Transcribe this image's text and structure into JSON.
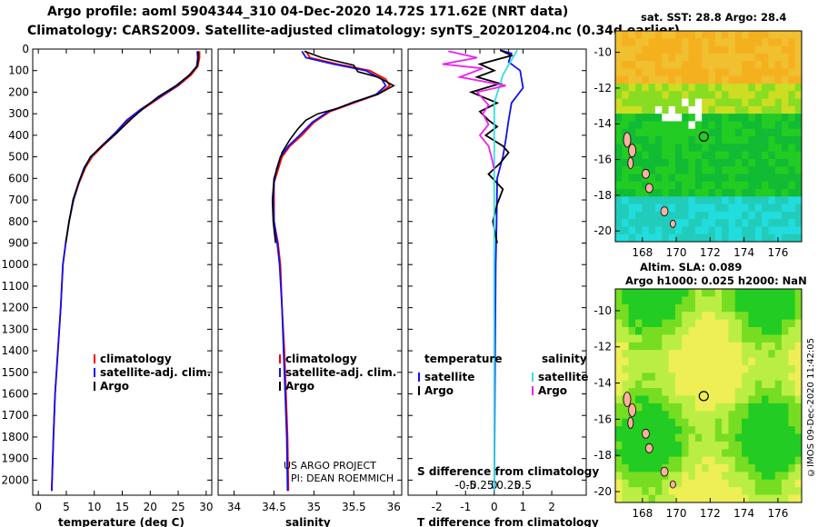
{
  "header": {
    "title_line1": "Argo profile: aoml 5904344_310 04-Dec-2020 14.72S 171.62E (NRT data)",
    "title_line2": "Climatology: CARS2009. Satellite-adjusted climatology: synTS_20201204.nc (0.34d earlier)"
  },
  "colors": {
    "climatology": "#ff0000",
    "satellite_adj": "#1010ee",
    "argo": "#000000",
    "satellite_s": "#33e0e0",
    "argo_s": "#ee22ee",
    "sst_warm": "#f5b020",
    "sst_mid": "#22cc22",
    "sst_cool": "#22dddd",
    "land": "#ffb0a0"
  },
  "depth_axis": {
    "ticks": [
      0,
      100,
      200,
      300,
      400,
      500,
      600,
      700,
      800,
      900,
      1000,
      1100,
      1200,
      1300,
      1400,
      1500,
      1600,
      1700,
      1800,
      1900,
      2000
    ],
    "ylim": [
      2070,
      0
    ]
  },
  "chart_data": [
    {
      "type": "line",
      "panel": "temperature",
      "xlabel": "temperature (deg C)",
      "xlim": [
        -1,
        31
      ],
      "xticks": [
        0,
        5,
        10,
        15,
        20,
        25,
        30
      ],
      "legend": [
        "climatology",
        "satellite-adj. clim.",
        "Argo"
      ],
      "series": [
        {
          "name": "climatology",
          "points": [
            [
              28.8,
              10
            ],
            [
              28.8,
              40
            ],
            [
              28.5,
              80
            ],
            [
              27.3,
              120
            ],
            [
              25,
              170
            ],
            [
              22,
              220
            ],
            [
              18.6,
              280
            ],
            [
              16,
              330
            ],
            [
              14,
              390
            ],
            [
              11.5,
              450
            ],
            [
              9.6,
              500
            ],
            [
              8.4,
              550
            ],
            [
              7.3,
              620
            ],
            [
              6.3,
              700
            ],
            [
              5.5,
              800
            ],
            [
              4.9,
              900
            ],
            [
              4.4,
              1000
            ],
            [
              4.0,
              1200
            ],
            [
              3.5,
              1400
            ],
            [
              3.0,
              1600
            ],
            [
              2.7,
              1800
            ],
            [
              2.4,
              2050
            ]
          ]
        },
        {
          "name": "satellite-adj. clim.",
          "points": [
            [
              28.4,
              10
            ],
            [
              28.5,
              40
            ],
            [
              28.3,
              80
            ],
            [
              27,
              120
            ],
            [
              24.8,
              170
            ],
            [
              21.8,
              220
            ],
            [
              18.3,
              280
            ],
            [
              15.8,
              330
            ],
            [
              13.7,
              390
            ],
            [
              11.3,
              450
            ],
            [
              9.4,
              500
            ],
            [
              8.2,
              550
            ],
            [
              7.2,
              620
            ],
            [
              6.3,
              700
            ],
            [
              5.5,
              800
            ],
            [
              4.9,
              900
            ],
            [
              4.4,
              1000
            ],
            [
              4.0,
              1200
            ],
            [
              3.5,
              1400
            ],
            [
              3.0,
              1600
            ],
            [
              2.7,
              1800
            ],
            [
              2.4,
              2050
            ]
          ]
        },
        {
          "name": "Argo",
          "points": [
            [
              28.6,
              10
            ],
            [
              28.6,
              40
            ],
            [
              28.4,
              80
            ],
            [
              27,
              120
            ],
            [
              24.6,
              170
            ],
            [
              21.5,
              220
            ],
            [
              18.8,
              275
            ],
            [
              16.8,
              320
            ],
            [
              14,
              390
            ],
            [
              11.4,
              450
            ],
            [
              9.3,
              500
            ],
            [
              8.3,
              550
            ],
            [
              7.2,
              620
            ],
            [
              6.2,
              700
            ],
            [
              5.5,
              800
            ],
            [
              4.9,
              900
            ]
          ]
        }
      ]
    },
    {
      "type": "line",
      "panel": "salinity",
      "xlabel": "salinity",
      "xlim": [
        33.8,
        36.1
      ],
      "xticks": [
        34,
        34.5,
        35,
        35.5,
        36
      ],
      "legend": [
        "climatology",
        "satellite-adj. clim.",
        "Argo"
      ],
      "annotations": [
        "US ARGO PROJECT",
        "PI: DEAN ROEMMICH"
      ],
      "series": [
        {
          "name": "climatology",
          "points": [
            [
              34.9,
              10
            ],
            [
              34.95,
              40
            ],
            [
              35.3,
              70
            ],
            [
              35.7,
              100
            ],
            [
              35.9,
              140
            ],
            [
              35.95,
              170
            ],
            [
              35.8,
              210
            ],
            [
              35.5,
              250
            ],
            [
              35.2,
              290
            ],
            [
              35.0,
              340
            ],
            [
              34.85,
              400
            ],
            [
              34.7,
              450
            ],
            [
              34.6,
              500
            ],
            [
              34.55,
              560
            ],
            [
              34.5,
              620
            ],
            [
              34.5,
              700
            ],
            [
              34.5,
              800
            ],
            [
              34.55,
              900
            ],
            [
              34.58,
              1000
            ],
            [
              34.6,
              1200
            ],
            [
              34.63,
              1400
            ],
            [
              34.65,
              1600
            ],
            [
              34.67,
              1800
            ],
            [
              34.68,
              2050
            ]
          ]
        },
        {
          "name": "satellite-adj. clim.",
          "points": [
            [
              34.85,
              10
            ],
            [
              34.9,
              40
            ],
            [
              35.25,
              70
            ],
            [
              35.65,
              100
            ],
            [
              35.85,
              140
            ],
            [
              35.9,
              170
            ],
            [
              35.78,
              210
            ],
            [
              35.48,
              250
            ],
            [
              35.18,
              290
            ],
            [
              34.98,
              340
            ],
            [
              34.82,
              400
            ],
            [
              34.68,
              450
            ],
            [
              34.58,
              500
            ],
            [
              34.53,
              560
            ],
            [
              34.5,
              620
            ],
            [
              34.49,
              700
            ],
            [
              34.5,
              800
            ],
            [
              34.54,
              900
            ],
            [
              34.57,
              1000
            ],
            [
              34.6,
              1200
            ],
            [
              34.62,
              1400
            ],
            [
              34.64,
              1600
            ],
            [
              34.66,
              1800
            ],
            [
              34.67,
              2050
            ]
          ]
        },
        {
          "name": "Argo",
          "points": [
            [
              34.88,
              10
            ],
            [
              35.1,
              40
            ],
            [
              35.5,
              75
            ],
            [
              35.55,
              105
            ],
            [
              35.8,
              130
            ],
            [
              36.0,
              170
            ],
            [
              35.8,
              210
            ],
            [
              35.5,
              245
            ],
            [
              35.3,
              275
            ],
            [
              35.05,
              300
            ],
            [
              34.9,
              330
            ],
            [
              34.8,
              370
            ],
            [
              34.7,
              420
            ],
            [
              34.6,
              480
            ],
            [
              34.55,
              540
            ],
            [
              34.5,
              600
            ],
            [
              34.48,
              700
            ],
            [
              34.49,
              800
            ],
            [
              34.52,
              900
            ]
          ]
        }
      ]
    },
    {
      "type": "line",
      "panel": "difference",
      "xlabel": "T difference from climatology",
      "xlabel2": "S difference from climatology",
      "xlim": [
        -3,
        3.2
      ],
      "xticks_T": [
        -2,
        -1,
        0,
        1,
        2
      ],
      "xticks_S": [
        "-0.5",
        "-0.25",
        "0",
        "0.25",
        "0.5"
      ],
      "legend_T_title": "temperature",
      "legend_S_title": "salinity",
      "legend_T": [
        "satellite",
        "Argo"
      ],
      "legend_S": [
        "satellite",
        "Argo"
      ],
      "series": [
        {
          "name": "T satellite",
          "points": [
            [
              0.2,
              5
            ],
            [
              0.6,
              20
            ],
            [
              0.5,
              60
            ],
            [
              0.9,
              100
            ],
            [
              1.0,
              180
            ],
            [
              0.6,
              250
            ],
            [
              0.5,
              330
            ],
            [
              0.4,
              420
            ],
            [
              0.3,
              500
            ],
            [
              0.1,
              600
            ],
            [
              0.08,
              800
            ],
            [
              0.05,
              1000
            ],
            [
              0.0,
              2050
            ]
          ]
        },
        {
          "name": "T Argo",
          "points": [
            [
              0.2,
              5
            ],
            [
              0.6,
              30
            ],
            [
              -0.5,
              70
            ],
            [
              0,
              100
            ],
            [
              -0.6,
              130
            ],
            [
              0.2,
              160
            ],
            [
              -0.8,
              200
            ],
            [
              0.1,
              250
            ],
            [
              -0.5,
              290
            ],
            [
              -0.2,
              330
            ],
            [
              0.1,
              360
            ],
            [
              -0.3,
              400
            ],
            [
              0.3,
              450
            ],
            [
              0.5,
              480
            ],
            [
              0.2,
              530
            ],
            [
              -0.2,
              580
            ],
            [
              0.3,
              650
            ],
            [
              0.1,
              720
            ],
            [
              -0.05,
              800
            ],
            [
              0.1,
              900
            ]
          ]
        },
        {
          "name": "S satellite",
          "points": [
            [
              0.4,
              5
            ],
            [
              0.3,
              50
            ],
            [
              0.15,
              120
            ],
            [
              0.0,
              250
            ],
            [
              0.0,
              350
            ],
            [
              0.0,
              400
            ],
            [
              0.0,
              2050
            ]
          ]
        },
        {
          "name": "S Argo",
          "points": [
            [
              -0.8,
              10
            ],
            [
              -0.3,
              40
            ],
            [
              -0.9,
              70
            ],
            [
              -0.2,
              90
            ],
            [
              -0.6,
              130
            ],
            [
              0.2,
              170
            ],
            [
              -0.3,
              200
            ],
            [
              -0.1,
              260
            ],
            [
              -0.2,
              300
            ],
            [
              -0.1,
              350
            ],
            [
              -0.25,
              400
            ],
            [
              -0.1,
              450
            ],
            [
              -0.05,
              500
            ],
            [
              0.0,
              560
            ]
          ]
        }
      ]
    }
  ],
  "maps": {
    "sst": {
      "title": "sat. SST: 28.8 Argo: 28.4",
      "lon_ticks": [
        "168",
        "170",
        "172",
        "174",
        "176"
      ],
      "lat_ticks": [
        "-10",
        "-12",
        "-14",
        "-16",
        "-18",
        "-20"
      ],
      "float_lon": 171.62,
      "float_lat": -14.72
    },
    "sla": {
      "title_line1": "Altim. SLA: 0.089",
      "title_line2": "Argo h1000: 0.025 h2000: NaN",
      "lon_ticks": [
        "168",
        "170",
        "172",
        "174",
        "176"
      ],
      "lat_ticks": [
        "-10",
        "-12",
        "-14",
        "-16",
        "-18",
        "-20"
      ],
      "float_lon": 171.62,
      "float_lat": -14.72
    }
  },
  "credit": "©IMOS 09-Dec-2020 11:42:05"
}
